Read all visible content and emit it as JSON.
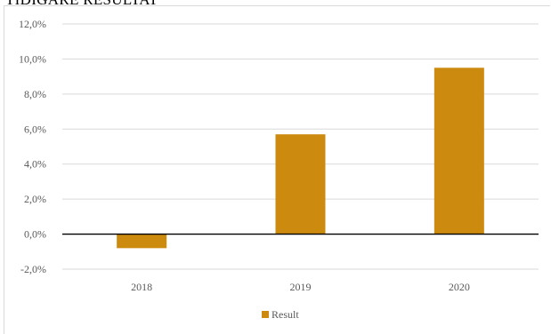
{
  "heading": "TIDIGARE RESULTAT",
  "chart_data": {
    "type": "bar",
    "categories": [
      "2018",
      "2019",
      "2020"
    ],
    "series": [
      {
        "name": "Result",
        "values": [
          -0.8,
          5.7,
          9.5
        ],
        "color": "#cc8a0e"
      }
    ],
    "ylim": [
      -2,
      12
    ],
    "yticks": [
      -2,
      0,
      2,
      4,
      6,
      8,
      10,
      12
    ],
    "ytick_labels": [
      "-2,0%",
      "0,0%",
      "2,0%",
      "4,0%",
      "6,0%",
      "8,0%",
      "10,0%",
      "12,0%"
    ],
    "grid": true,
    "legend_position": "bottom"
  }
}
